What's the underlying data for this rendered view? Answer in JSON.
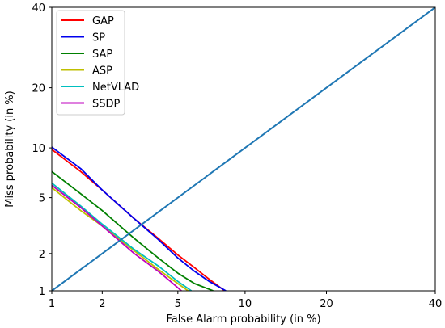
{
  "chart_data": {
    "type": "line",
    "title": "",
    "xlabel": "False Alarm probability (in %)",
    "ylabel": "Miss probability (in %)",
    "x_scale": "normal-deviate (DET)",
    "y_scale": "normal-deviate (DET)",
    "xlim": [
      1,
      40
    ],
    "ylim": [
      1,
      40
    ],
    "x_ticks": [
      1,
      2,
      5,
      10,
      20,
      40
    ],
    "x_tick_labels": [
      "1",
      "2",
      "5",
      "10",
      "20",
      "40"
    ],
    "y_ticks": [
      1,
      2,
      5,
      10,
      20,
      40
    ],
    "y_tick_labels": [
      "1",
      "2",
      "5",
      "10",
      "20",
      "40"
    ],
    "grid": false,
    "legend_position": "top-left",
    "series": [
      {
        "name": "GAP",
        "color": "#ff0000",
        "x": [
          1.0,
          1.5,
          2.0,
          3.0,
          4.0,
          5.0,
          6.0,
          7.0,
          8.2
        ],
        "y": [
          9.8,
          7.3,
          5.6,
          3.6,
          2.6,
          1.95,
          1.55,
          1.25,
          1.0
        ]
      },
      {
        "name": "SP",
        "color": "#0000ee",
        "x": [
          1.0,
          1.5,
          2.0,
          3.0,
          4.0,
          5.0,
          6.0,
          7.0,
          8.3
        ],
        "y": [
          10.1,
          7.6,
          5.6,
          3.6,
          2.55,
          1.85,
          1.45,
          1.2,
          1.0
        ]
      },
      {
        "name": "SAP",
        "color": "#008000",
        "x": [
          1.0,
          1.5,
          2.0,
          3.0,
          4.0,
          5.0,
          6.0,
          7.3
        ],
        "y": [
          7.3,
          5.3,
          4.1,
          2.6,
          1.85,
          1.4,
          1.15,
          1.0
        ]
      },
      {
        "name": "ASP",
        "color": "#bfbf00",
        "x": [
          1.0,
          1.5,
          2.0,
          3.0,
          4.0,
          5.0,
          5.6
        ],
        "y": [
          5.8,
          4.1,
          3.2,
          2.1,
          1.5,
          1.15,
          1.0
        ]
      },
      {
        "name": "NetVLAD",
        "color": "#00bfbf",
        "x": [
          1.0,
          1.5,
          2.0,
          3.0,
          4.0,
          5.0,
          5.8
        ],
        "y": [
          6.2,
          4.4,
          3.3,
          2.15,
          1.6,
          1.2,
          1.0
        ]
      },
      {
        "name": "SSDP",
        "color": "#bf00bf",
        "x": [
          1.0,
          1.5,
          2.0,
          3.0,
          4.0,
          4.6,
          5.2
        ],
        "y": [
          6.0,
          4.3,
          3.2,
          2.0,
          1.45,
          1.2,
          1.0
        ]
      },
      {
        "name": "",
        "color": "#1f77b4",
        "x": [
          1,
          40
        ],
        "y": [
          1,
          40
        ]
      }
    ]
  }
}
